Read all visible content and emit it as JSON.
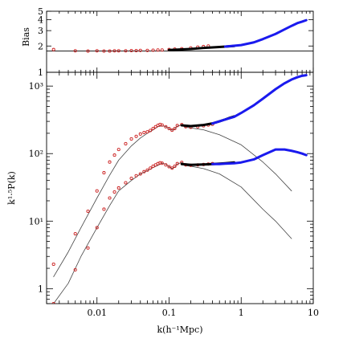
{
  "chart_data": [
    {
      "type": "line",
      "panel": "top",
      "ylabel": "Bias",
      "yscale": "log",
      "xscale": "log",
      "ylim": [
        1,
        5
      ],
      "xlim": [
        0.002,
        10
      ],
      "y_tick_labels": [
        "1",
        "2",
        "3",
        "4",
        "5"
      ],
      "y_tick_values": [
        1,
        2,
        3,
        4,
        5
      ],
      "reference_line": 1.75,
      "series": [
        {
          "kind": "line",
          "color": "#000000",
          "x": [
            0.002,
            10
          ],
          "y": [
            1.75,
            1.75
          ]
        },
        {
          "kind": "markers",
          "color": "#cc2222",
          "x": [
            0.0025,
            0.005,
            0.0075,
            0.01,
            0.0125,
            0.015,
            0.0175,
            0.02,
            0.025,
            0.03,
            0.035,
            0.04,
            0.05,
            0.06,
            0.07,
            0.08,
            0.1,
            0.12,
            0.15,
            0.2,
            0.25,
            0.3,
            0.35
          ],
          "y": [
            1.82,
            1.76,
            1.75,
            1.76,
            1.75,
            1.75,
            1.76,
            1.76,
            1.76,
            1.77,
            1.77,
            1.78,
            1.78,
            1.79,
            1.8,
            1.8,
            1.82,
            1.84,
            1.86,
            1.9,
            1.94,
            1.97,
            2.0
          ]
        },
        {
          "kind": "line",
          "color": "#000000",
          "width": 3,
          "x": [
            0.1,
            0.2,
            0.3,
            0.5,
            0.8
          ],
          "y": [
            1.8,
            1.85,
            1.9,
            1.95,
            2.0
          ]
        },
        {
          "kind": "line",
          "color": "#1a1aee",
          "width": 3,
          "x": [
            0.6,
            1,
            1.5,
            2,
            3,
            4,
            5,
            6,
            7,
            8
          ],
          "y": [
            1.97,
            2.05,
            2.2,
            2.4,
            2.75,
            3.1,
            3.4,
            3.65,
            3.8,
            3.95
          ]
        }
      ]
    },
    {
      "type": "line",
      "panel": "bottom",
      "xlabel": "k(h⁻¹Mpc)",
      "ylabel": "k¹·⁵P(k)",
      "xscale": "log",
      "yscale": "log",
      "xlim": [
        0.002,
        10
      ],
      "ylim": [
        0.6,
        1600
      ],
      "x_tick_labels": [
        "0.01",
        "0.1",
        "1",
        "10"
      ],
      "x_tick_values": [
        0.01,
        0.1,
        1,
        10
      ],
      "y_tick_labels": [
        "1",
        "10¹",
        "10²",
        "10³"
      ],
      "y_tick_values": [
        1,
        10,
        100,
        1000
      ],
      "series": [
        {
          "kind": "line",
          "color": "#444444",
          "width": 0.8,
          "x": [
            0.0025,
            0.004,
            0.006,
            0.01,
            0.015,
            0.02,
            0.03,
            0.04,
            0.05,
            0.06,
            0.07,
            0.08,
            0.09,
            0.1,
            0.11,
            0.12,
            0.13,
            0.15,
            0.17,
            0.2,
            0.3,
            0.5,
            1,
            2,
            3,
            5
          ],
          "y": [
            1.5,
            3.5,
            8,
            22,
            48,
            80,
            130,
            170,
            200,
            225,
            250,
            258,
            252,
            235,
            222,
            232,
            255,
            265,
            245,
            240,
            225,
            190,
            135,
            75,
            50,
            28
          ]
        },
        {
          "kind": "line",
          "color": "#444444",
          "width": 0.8,
          "x": [
            0.0025,
            0.004,
            0.006,
            0.01,
            0.015,
            0.02,
            0.03,
            0.04,
            0.05,
            0.06,
            0.07,
            0.08,
            0.09,
            0.1,
            0.11,
            0.12,
            0.13,
            0.15,
            0.17,
            0.2,
            0.3,
            0.5,
            1,
            2,
            3,
            5
          ],
          "y": [
            0.6,
            1.2,
            3,
            8,
            17,
            28,
            40,
            50,
            56,
            62,
            67,
            72,
            70,
            64,
            60,
            63,
            70,
            74,
            66,
            65,
            60,
            50,
            32,
            15,
            10,
            5.5
          ]
        },
        {
          "kind": "markers",
          "color": "#cc2222",
          "x": [
            0.0025,
            0.005,
            0.0075,
            0.01,
            0.0125,
            0.015,
            0.0175,
            0.02,
            0.025,
            0.03,
            0.035,
            0.04,
            0.045,
            0.05,
            0.055,
            0.06,
            0.065,
            0.07,
            0.075,
            0.08,
            0.09,
            0.1,
            0.11,
            0.12,
            0.13,
            0.15,
            0.17,
            0.2,
            0.25,
            0.3,
            0.35,
            0.4
          ],
          "y": [
            2.3,
            6.5,
            14,
            28,
            52,
            75,
            95,
            115,
            140,
            165,
            180,
            195,
            205,
            210,
            220,
            235,
            250,
            262,
            270,
            265,
            250,
            235,
            222,
            235,
            260,
            268,
            250,
            245,
            250,
            258,
            265,
            272
          ]
        },
        {
          "kind": "markers",
          "color": "#cc2222",
          "x": [
            0.0025,
            0.005,
            0.0075,
            0.01,
            0.0125,
            0.015,
            0.0175,
            0.02,
            0.025,
            0.03,
            0.035,
            0.04,
            0.045,
            0.05,
            0.055,
            0.06,
            0.065,
            0.07,
            0.075,
            0.08,
            0.09,
            0.1,
            0.11,
            0.12,
            0.13,
            0.15,
            0.17,
            0.2,
            0.25,
            0.3,
            0.35,
            0.4
          ],
          "y": [
            0.6,
            1.9,
            4,
            8,
            15,
            22,
            27,
            31,
            37,
            43,
            47,
            50,
            54,
            57,
            61,
            65,
            68,
            71,
            73,
            72,
            68,
            64,
            61,
            65,
            71,
            74,
            68,
            67,
            68,
            69,
            70,
            71
          ]
        },
        {
          "kind": "line",
          "color": "#000000",
          "width": 3,
          "x": [
            0.15,
            0.2,
            0.3,
            0.4,
            0.5,
            0.6,
            0.7,
            0.8
          ],
          "y": [
            262,
            255,
            265,
            280,
            300,
            320,
            340,
            355
          ]
        },
        {
          "kind": "line",
          "color": "#000000",
          "width": 3,
          "x": [
            0.15,
            0.2,
            0.3,
            0.4,
            0.5,
            0.6,
            0.7,
            0.8
          ],
          "y": [
            70,
            68,
            69,
            70,
            71,
            72,
            73,
            74
          ]
        },
        {
          "kind": "line",
          "color": "#1a1aee",
          "width": 3,
          "x": [
            0.4,
            0.5,
            0.6,
            0.8,
            1,
            1.5,
            2,
            3,
            4,
            5,
            6,
            7,
            8
          ],
          "y": [
            280,
            300,
            320,
            350,
            400,
            520,
            650,
            900,
            1100,
            1250,
            1350,
            1420,
            1450
          ]
        },
        {
          "kind": "line",
          "color": "#1a1aee",
          "width": 3,
          "x": [
            0.4,
            0.5,
            0.6,
            0.8,
            1,
            1.5,
            2,
            3,
            4,
            5,
            6,
            7,
            8
          ],
          "y": [
            70,
            70,
            71,
            72,
            74,
            82,
            95,
            115,
            115,
            110,
            105,
            100,
            95
          ]
        }
      ]
    }
  ]
}
